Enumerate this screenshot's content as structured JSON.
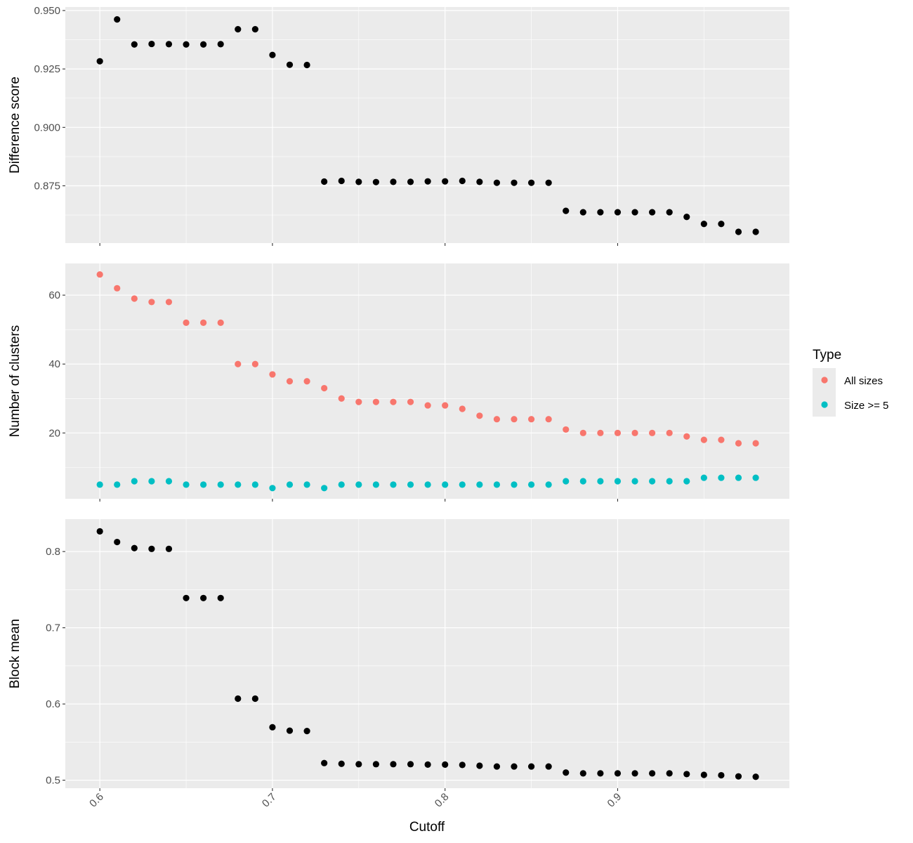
{
  "chart_data": {
    "type": "scatter",
    "x_label": "Cutoff",
    "x": [
      0.6,
      0.61,
      0.62,
      0.63,
      0.64,
      0.65,
      0.66,
      0.67,
      0.68,
      0.69,
      0.7,
      0.71,
      0.72,
      0.73,
      0.74,
      0.75,
      0.76,
      0.77,
      0.78,
      0.79,
      0.8,
      0.81,
      0.82,
      0.83,
      0.84,
      0.85,
      0.86,
      0.87,
      0.88,
      0.89,
      0.9,
      0.91,
      0.92,
      0.93,
      0.94,
      0.95,
      0.96,
      0.97,
      0.98
    ],
    "xlim": [
      0.58,
      0.9995
    ],
    "x_ticks": [
      0.6,
      0.7,
      0.8,
      0.9
    ],
    "x_tick_labels": [
      "0.6",
      "0.7",
      "0.8",
      "0.9"
    ],
    "grid": true,
    "legend": {
      "title": "Type",
      "placement": "right",
      "entries": [
        {
          "label": "All sizes",
          "color": "#F8766D"
        },
        {
          "label": "Size >= 5",
          "color": "#00BFC4"
        }
      ]
    },
    "panels": [
      {
        "id": "difference-score",
        "ylabel": "Difference score",
        "ylim": [
          0.8505,
          0.9515
        ],
        "y_ticks": [
          0.875,
          0.9,
          0.925,
          0.95
        ],
        "y_tick_labels": [
          "0.875",
          "0.900",
          "0.925",
          "0.950"
        ],
        "series": [
          {
            "color": "#000000",
            "values": [
              0.9283,
              0.9462,
              0.9355,
              0.9357,
              0.9356,
              0.9355,
              0.9355,
              0.9356,
              0.942,
              0.942,
              0.931,
              0.9268,
              0.9267,
              0.8768,
              0.8771,
              0.8767,
              0.8766,
              0.8767,
              0.8767,
              0.8769,
              0.8769,
              0.8771,
              0.8767,
              0.8763,
              0.8763,
              0.8763,
              0.8763,
              0.8643,
              0.8637,
              0.8637,
              0.8637,
              0.8637,
              0.8637,
              0.8637,
              0.8617,
              0.8587,
              0.8587,
              0.8553,
              0.8553
            ]
          }
        ]
      },
      {
        "id": "number-of-clusters",
        "ylabel": "Number of clusters",
        "ylim": [
          0.9,
          69.2
        ],
        "y_ticks": [
          20,
          40,
          60
        ],
        "y_tick_labels": [
          "20",
          "40",
          "60"
        ],
        "series": [
          {
            "name": "All sizes",
            "color": "#F8766D",
            "values": [
              66,
              62,
              59,
              58,
              58,
              52,
              52,
              52,
              40,
              40,
              37,
              35,
              35,
              33,
              30,
              29,
              29,
              29,
              29,
              28,
              28,
              27,
              25,
              24,
              24,
              24,
              24,
              21,
              20,
              20,
              20,
              20,
              20,
              20,
              19,
              18,
              18,
              17,
              17
            ]
          },
          {
            "name": "Size >= 5",
            "color": "#00BFC4",
            "values": [
              5,
              5,
              6,
              6,
              6,
              5,
              5,
              5,
              5,
              5,
              4,
              5,
              5,
              4,
              5,
              5,
              5,
              5,
              5,
              5,
              5,
              5,
              5,
              5,
              5,
              5,
              5,
              6,
              6,
              6,
              6,
              6,
              6,
              6,
              6,
              7,
              7,
              7,
              7
            ]
          }
        ]
      },
      {
        "id": "block-mean",
        "ylabel": "Block mean",
        "ylim": [
          0.4895,
          0.8425
        ],
        "y_ticks": [
          0.5,
          0.6,
          0.7,
          0.8
        ],
        "y_tick_labels": [
          "0.5",
          "0.6",
          "0.7",
          "0.8"
        ],
        "series": [
          {
            "color": "#000000",
            "values": [
              0.8265,
              0.8125,
              0.8045,
              0.8035,
              0.8035,
              0.739,
              0.739,
              0.739,
              0.607,
              0.607,
              0.5695,
              0.565,
              0.5645,
              0.5225,
              0.5215,
              0.521,
              0.521,
              0.521,
              0.521,
              0.5205,
              0.5205,
              0.52,
              0.519,
              0.518,
              0.518,
              0.518,
              0.518,
              0.51,
              0.509,
              0.509,
              0.509,
              0.509,
              0.509,
              0.509,
              0.508,
              0.507,
              0.5065,
              0.505,
              0.5045
            ]
          }
        ]
      }
    ]
  }
}
